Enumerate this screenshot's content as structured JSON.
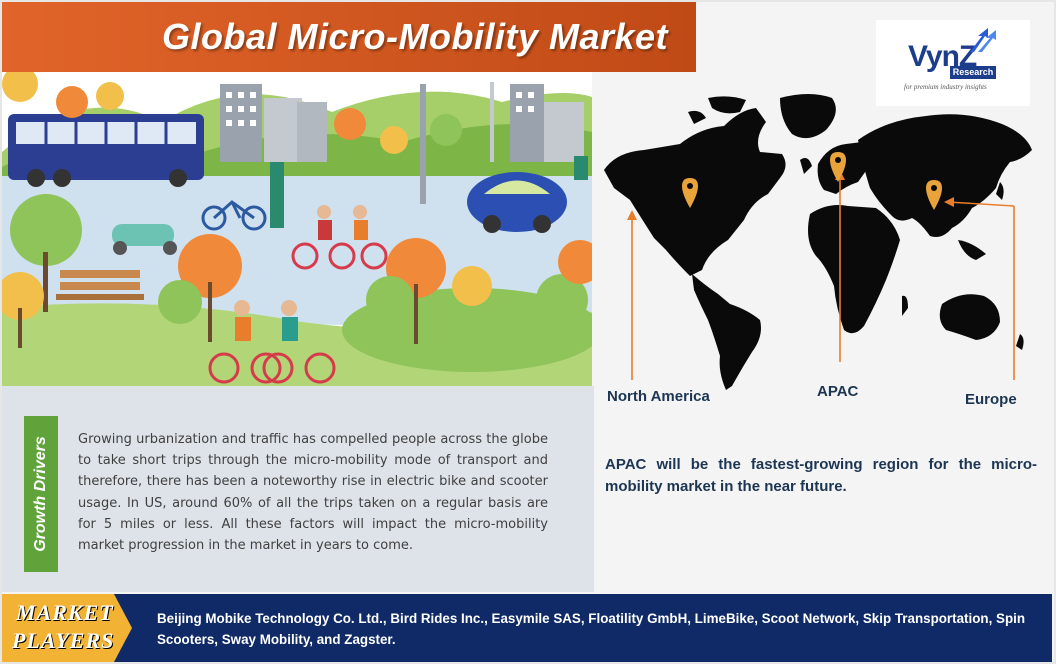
{
  "header": {
    "title": "Global Micro-Mobility Market"
  },
  "logo": {
    "name": "VynZ",
    "sub": "Research",
    "tagline": "for premium industry insights"
  },
  "map": {
    "regions": [
      {
        "label": "North America"
      },
      {
        "label": "APAC"
      },
      {
        "label": "Europe"
      }
    ],
    "pin_color": "#e8a33a",
    "arrow_color": "#e87d2c",
    "note": "APAC will be the fastest-growing region for the micro-mobility market in the near future."
  },
  "growth_drivers": {
    "tab_label": "Growth Drivers",
    "text": "Growing urbanization and traffic has compelled people across the globe to take short trips through the micro-mobility mode of transport and therefore, there has been a noteworthy rise in electric bike and scooter usage. In US, around 60% of all the trips taken on a regular basis are for 5 miles or less. All these factors will impact the micro-mobility market progression in the market in years to come."
  },
  "market_players": {
    "badge_line1": "MARKET",
    "badge_line2": "PLAYERS",
    "text": "Beijing Mobike Technology Co. Ltd., Bird Rides Inc., Easymile SAS, Floatility GmbH, LimeBike, Scoot Network, Skip Transportation, Spin Scooters, Sway Mobility, and Zagster."
  },
  "colors": {
    "title_bar": "#d35a21",
    "drivers_tab": "#5fa33a",
    "players_bar": "#0f2a66",
    "badge": "#f2b233",
    "text_dark": "#1c3553"
  }
}
